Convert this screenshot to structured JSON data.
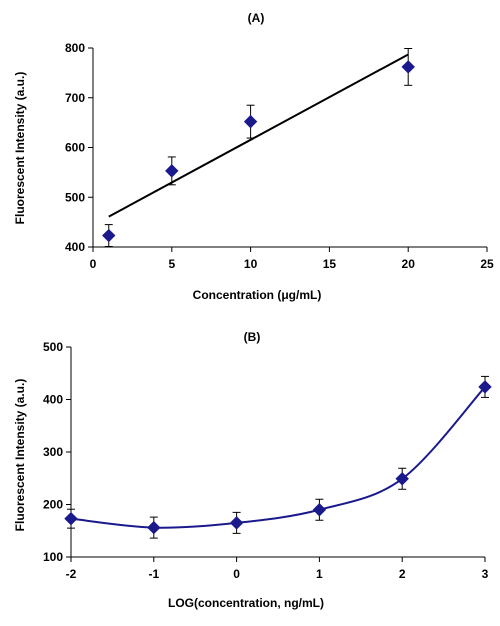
{
  "colors": {
    "marker": "#1a1a8c",
    "curve": "#1a1a8c",
    "trendline": "#000000",
    "axis": "#000000"
  },
  "chart_data": [
    {
      "type": "scatter",
      "title": "(A)",
      "xlabel": "Concentration (μg/mL)",
      "ylabel": "Fluorescent Intensity (a.u.)",
      "xlim": [
        0,
        25
      ],
      "ylim": [
        400,
        800
      ],
      "x_ticks": [
        "0",
        "5",
        "10",
        "15",
        "20",
        "25"
      ],
      "y_ticks": [
        "400",
        "500",
        "600",
        "700",
        "800"
      ],
      "grid": false,
      "points": [
        {
          "x": 1,
          "y": 423,
          "err": 22
        },
        {
          "x": 5,
          "y": 553,
          "err": 28
        },
        {
          "x": 10,
          "y": 652,
          "err": 33
        },
        {
          "x": 20,
          "y": 762,
          "err": 37
        }
      ],
      "trendline": {
        "x": [
          1,
          20
        ],
        "y": [
          461,
          787
        ]
      }
    },
    {
      "type": "line",
      "title": "(B)",
      "xlabel": "LOG(concentration, ng/mL)",
      "ylabel": "Fluorescent Intensity (a.u.)",
      "xlim": [
        -2,
        3
      ],
      "ylim": [
        100,
        500
      ],
      "x_ticks": [
        "-2",
        "-1",
        "0",
        "1",
        "2",
        "3"
      ],
      "y_ticks": [
        "100",
        "200",
        "300",
        "400",
        "500"
      ],
      "grid": false,
      "points": [
        {
          "x": -2,
          "y": 173,
          "err": 18
        },
        {
          "x": -1,
          "y": 156,
          "err": 20
        },
        {
          "x": 0,
          "y": 165,
          "err": 20
        },
        {
          "x": 1,
          "y": 190,
          "err": 20
        },
        {
          "x": 2,
          "y": 249,
          "err": 20
        },
        {
          "x": 3,
          "y": 424,
          "err": 20
        }
      ]
    }
  ]
}
